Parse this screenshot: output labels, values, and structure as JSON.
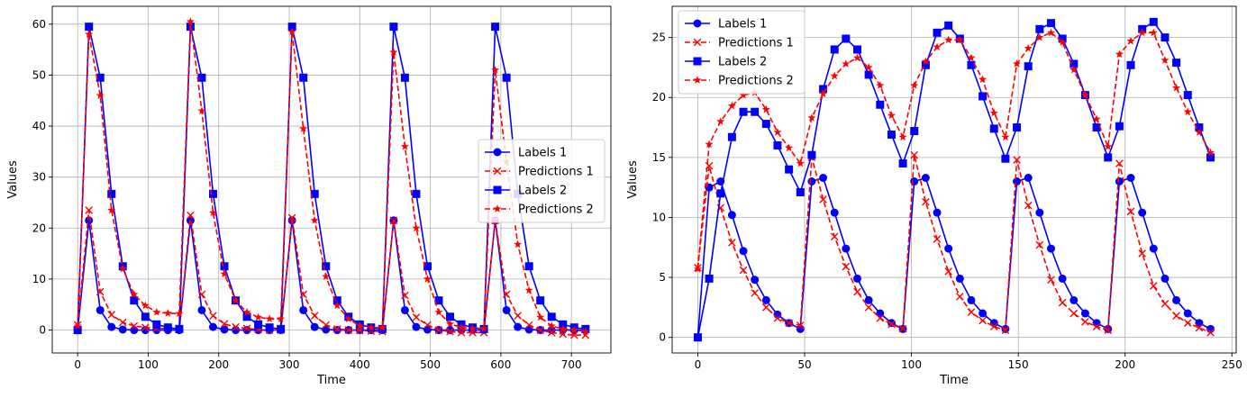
{
  "colors": {
    "labels": "#0000ff",
    "predictions": "#ff0000",
    "grid": "#b0b0b0"
  },
  "chart_data": [
    {
      "type": "line",
      "xlabel": "Time",
      "ylabel": "Values",
      "xlim": [
        -36,
        756
      ],
      "ylim": [
        -4.5,
        63.5
      ],
      "xticks": [
        0,
        100,
        200,
        300,
        400,
        500,
        600,
        700
      ],
      "yticks": [
        0,
        10,
        20,
        30,
        40,
        50,
        60
      ],
      "grid": true,
      "legend_position": "center-right",
      "series": [
        {
          "name": "Labels 1",
          "color": "#0000ff",
          "dash": "solid",
          "marker": "circle",
          "x": [
            0,
            16,
            32,
            48,
            64,
            80,
            96,
            112,
            128,
            144,
            160,
            176,
            192,
            208,
            224,
            240,
            256,
            272,
            288,
            304,
            320,
            336,
            352,
            368,
            384,
            400,
            416,
            432,
            448,
            464,
            480,
            496,
            512,
            528,
            544,
            560,
            576,
            592,
            608,
            624,
            640,
            656,
            672,
            688,
            704,
            720
          ],
          "y": [
            0,
            21.5,
            3.9,
            0.6,
            0.1,
            0,
            0,
            0,
            0,
            0,
            21.5,
            3.9,
            0.6,
            0.1,
            0,
            0,
            0,
            0,
            0,
            21.5,
            3.9,
            0.6,
            0.1,
            0,
            0,
            0,
            0,
            0,
            21.5,
            3.9,
            0.6,
            0.1,
            0,
            0,
            0,
            0,
            0,
            21.5,
            3.9,
            0.6,
            0.1,
            0,
            0,
            0,
            0,
            0
          ]
        },
        {
          "name": "Predictions 1",
          "color": "#ff0000",
          "dash": "dashed",
          "marker": "x",
          "x": [
            0,
            16,
            32,
            48,
            64,
            80,
            96,
            112,
            128,
            144,
            160,
            176,
            192,
            208,
            224,
            240,
            256,
            272,
            288,
            304,
            320,
            336,
            352,
            368,
            384,
            400,
            416,
            432,
            448,
            464,
            480,
            496,
            512,
            528,
            544,
            560,
            576,
            592,
            608,
            624,
            640,
            656,
            672,
            688,
            704,
            720
          ],
          "y": [
            1,
            23.5,
            7.5,
            3,
            1.5,
            0.8,
            0.5,
            0.3,
            0.3,
            0.3,
            22.5,
            7,
            2.8,
            1.2,
            0.6,
            0.3,
            0.1,
            0,
            0,
            22,
            7,
            2.8,
            1,
            0.2,
            0,
            -0.1,
            -0.2,
            -0.3,
            21.5,
            6.8,
            2.5,
            1,
            0,
            -0.3,
            -0.5,
            -0.5,
            -0.5,
            21.5,
            7,
            2.8,
            1,
            0,
            -0.5,
            -0.8,
            -1,
            -1
          ]
        },
        {
          "name": "Labels 2",
          "color": "#0000ff",
          "dash": "solid",
          "marker": "square",
          "x": [
            0,
            16,
            32,
            48,
            64,
            80,
            96,
            112,
            128,
            144,
            160,
            176,
            192,
            208,
            224,
            240,
            256,
            272,
            288,
            304,
            320,
            336,
            352,
            368,
            384,
            400,
            416,
            432,
            448,
            464,
            480,
            496,
            512,
            528,
            544,
            560,
            576,
            592,
            608,
            624,
            640,
            656,
            672,
            688,
            704,
            720
          ],
          "y": [
            0,
            59.5,
            49.5,
            26.7,
            12.5,
            5.8,
            2.6,
            1.1,
            0.5,
            0.2,
            59.5,
            49.5,
            26.7,
            12.5,
            5.8,
            2.6,
            1.1,
            0.5,
            0.2,
            59.5,
            49.5,
            26.7,
            12.5,
            5.8,
            2.6,
            1.1,
            0.5,
            0.2,
            59.5,
            49.5,
            26.7,
            12.5,
            5.8,
            2.6,
            1.1,
            0.5,
            0.2,
            59.5,
            49.5,
            26.7,
            12.5,
            5.8,
            2.6,
            1.1,
            0.5,
            0.2
          ]
        },
        {
          "name": "Predictions 2",
          "color": "#ff0000",
          "dash": "dashed",
          "marker": "star",
          "x": [
            0,
            16,
            32,
            48,
            64,
            80,
            96,
            112,
            128,
            144,
            160,
            176,
            192,
            208,
            224,
            240,
            256,
            272,
            288,
            304,
            320,
            336,
            352,
            368,
            384,
            400,
            416,
            432,
            448,
            464,
            480,
            496,
            512,
            528,
            544,
            560,
            576,
            592,
            608,
            624,
            640,
            656,
            672,
            688,
            704,
            720
          ],
          "y": [
            0.8,
            58,
            46,
            23.5,
            12,
            7,
            4.8,
            3.5,
            3.3,
            3.2,
            60.5,
            43,
            23,
            11,
            5.8,
            3.5,
            2.5,
            2.2,
            2.2,
            58.5,
            39.5,
            21.5,
            10.5,
            4.8,
            2.2,
            0.8,
            0.5,
            0.5,
            54.5,
            36,
            20,
            10,
            3.5,
            1.2,
            0.5,
            0.3,
            0.3,
            51,
            33,
            16.8,
            7.8,
            2.5,
            0.8,
            0.2,
            0,
            -0.3
          ]
        }
      ]
    },
    {
      "type": "line",
      "xlabel": "Time",
      "ylabel": "Values",
      "xlim": [
        -12,
        252
      ],
      "ylim": [
        -1.3,
        27.6
      ],
      "xticks": [
        0,
        50,
        100,
        150,
        200,
        250
      ],
      "yticks": [
        0,
        5,
        10,
        15,
        20,
        25
      ],
      "grid": true,
      "legend_position": "top-left",
      "series": [
        {
          "name": "Labels 1",
          "color": "#0000ff",
          "dash": "solid",
          "marker": "circle",
          "x": [
            0,
            5.33,
            10.67,
            16,
            21.33,
            26.67,
            32,
            37.33,
            42.67,
            48,
            53.33,
            58.67,
            64,
            69.33,
            74.67,
            80,
            85.33,
            90.67,
            96,
            101.33,
            106.67,
            112,
            117.33,
            122.67,
            128,
            133.33,
            138.67,
            144,
            149.33,
            154.67,
            160,
            165.33,
            170.67,
            176,
            181.33,
            186.67,
            192,
            197.33,
            202.67,
            208,
            213.33,
            218.67,
            224,
            229.33,
            234.67,
            240
          ],
          "y": [
            0,
            12.5,
            13,
            10.2,
            7.2,
            4.8,
            3.1,
            1.9,
            1.2,
            0.7,
            13,
            13.3,
            10.4,
            7.4,
            4.9,
            3.1,
            2,
            1.2,
            0.7,
            13,
            13.3,
            10.4,
            7.4,
            4.9,
            3.1,
            2,
            1.2,
            0.7,
            13,
            13.3,
            10.4,
            7.4,
            4.9,
            3.1,
            2,
            1.2,
            0.7,
            13,
            13.3,
            10.4,
            7.4,
            4.9,
            3.1,
            2,
            1.2,
            0.7
          ]
        },
        {
          "name": "Predictions 1",
          "color": "#ff0000",
          "dash": "dashed",
          "marker": "x",
          "x": [
            0,
            5.33,
            10.67,
            16,
            21.33,
            26.67,
            32,
            37.33,
            42.67,
            48,
            53.33,
            58.67,
            64,
            69.33,
            74.67,
            80,
            85.33,
            90.67,
            96,
            101.33,
            106.67,
            112,
            117.33,
            122.67,
            128,
            133.33,
            138.67,
            144,
            149.33,
            154.67,
            160,
            165.33,
            170.67,
            176,
            181.33,
            186.67,
            192,
            197.33,
            202.67,
            208,
            213.33,
            218.67,
            224,
            229.33,
            234.67,
            240
          ],
          "y": [
            5.8,
            14.3,
            10.8,
            7.9,
            5.6,
            3.7,
            2.5,
            1.6,
            1.2,
            1,
            15,
            11.5,
            8.4,
            5.9,
            3.8,
            2.5,
            1.6,
            1.1,
            0.7,
            15.2,
            11.3,
            8.2,
            5.5,
            3.4,
            2.1,
            1.4,
            0.9,
            0.6,
            14.8,
            11,
            7.7,
            4.8,
            2.9,
            2,
            1.3,
            0.9,
            0.6,
            14.5,
            10.5,
            7,
            4.3,
            2.8,
            1.8,
            1.2,
            0.8,
            0.4
          ]
        },
        {
          "name": "Labels 2",
          "color": "#0000ff",
          "dash": "solid",
          "marker": "square",
          "x": [
            0,
            5.33,
            10.67,
            16,
            21.33,
            26.67,
            32,
            37.33,
            42.67,
            48,
            53.33,
            58.67,
            64,
            69.33,
            74.67,
            80,
            85.33,
            90.67,
            96,
            101.33,
            106.67,
            112,
            117.33,
            122.67,
            128,
            133.33,
            138.67,
            144,
            149.33,
            154.67,
            160,
            165.33,
            170.67,
            176,
            181.33,
            186.67,
            192,
            197.33,
            202.67,
            208,
            213.33,
            218.67,
            224,
            229.33,
            234.67,
            240
          ],
          "y": [
            0,
            4.9,
            12,
            16.7,
            18.8,
            18.8,
            17.8,
            16,
            14,
            12.1,
            15.2,
            20.7,
            24,
            24.9,
            24,
            21.9,
            19.4,
            16.9,
            14.5,
            17.2,
            22.7,
            25.4,
            26,
            24.9,
            22.7,
            20.1,
            17.4,
            14.9,
            17.5,
            22.6,
            25.7,
            26.2,
            24.9,
            22.8,
            20.2,
            17.5,
            15,
            17.6,
            22.7,
            25.7,
            26.3,
            25,
            22.9,
            20.2,
            17.5,
            15
          ]
        },
        {
          "name": "Predictions 2",
          "color": "#ff0000",
          "dash": "dashed",
          "marker": "star",
          "x": [
            0,
            5.33,
            10.67,
            16,
            21.33,
            26.67,
            32,
            37.33,
            42.67,
            48,
            53.33,
            58.67,
            64,
            69.33,
            74.67,
            80,
            85.33,
            90.67,
            96,
            101.33,
            106.67,
            112,
            117.33,
            122.67,
            128,
            133.33,
            138.67,
            144,
            149.33,
            154.67,
            160,
            165.33,
            170.67,
            176,
            181.33,
            186.67,
            192,
            197.33,
            202.67,
            208,
            213.33,
            218.67,
            224,
            229.33,
            234.67,
            240
          ],
          "y": [
            5.7,
            16.1,
            18,
            19.3,
            20.2,
            20.4,
            19,
            17.1,
            15.8,
            14.5,
            18.3,
            20.3,
            21.8,
            22.8,
            23.3,
            22.5,
            21,
            18.5,
            16.7,
            21,
            23,
            24.2,
            24.8,
            24.8,
            23.3,
            21.5,
            18.7,
            16.7,
            22.8,
            24.1,
            25,
            25.4,
            24.6,
            22.3,
            20.2,
            18.2,
            15.9,
            23.6,
            24.7,
            25.4,
            25.4,
            23.1,
            20.8,
            18.8,
            17.1,
            15.4
          ]
        }
      ]
    }
  ]
}
